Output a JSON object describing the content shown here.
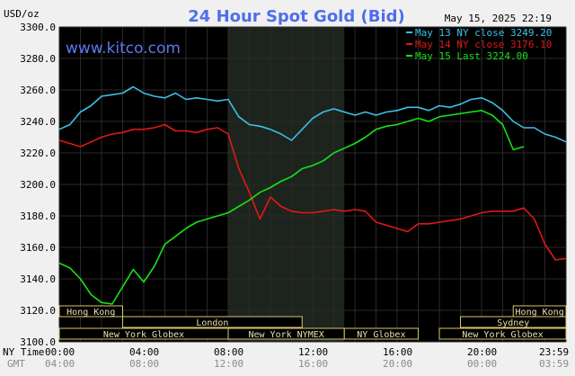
{
  "chart_data": {
    "type": "line",
    "title": "24 Hour Spot Gold (Bid)",
    "unit_label": "USD/oz",
    "website": "www.kitco.com",
    "date_stamp": "May 15, 2025 22:19",
    "ylim": [
      3100,
      3300
    ],
    "y_ticks": [
      "3300.0",
      "3280.0",
      "3260.0",
      "3240.0",
      "3220.0",
      "3200.0",
      "3180.0",
      "3160.0",
      "3140.0",
      "3120.0",
      "3100.0"
    ],
    "y_tick_values": [
      3300,
      3280,
      3260,
      3240,
      3220,
      3200,
      3180,
      3160,
      3140,
      3120,
      3100
    ],
    "xlim": [
      0,
      24
    ],
    "x_tick_values": [
      0,
      4,
      8,
      12,
      16,
      20,
      24
    ],
    "x_tick_labels_ny": [
      "00:00",
      "04:00",
      "08:00",
      "12:00",
      "16:00",
      "20:00",
      "23:59"
    ],
    "x_tick_labels_gmt": [
      "04:00",
      "08:00",
      "12:00",
      "16:00",
      "20:00",
      "00:00",
      "03:59"
    ],
    "row_label_ny": "NY Time",
    "row_label_gmt": "GMT",
    "shaded_session": [
      8,
      13.5
    ],
    "colors": {
      "bg": "#000000",
      "grid": "#2a2a2a",
      "session": "#1d241d",
      "text": "#ffffff",
      "title": "#4f6fe8",
      "axis_text": "#000000"
    },
    "legend": [
      {
        "label": "May 13 NY close 3249.20",
        "color": "#3cc0e6"
      },
      {
        "label": "May 14 NY close 3176.10",
        "color": "#e01818"
      },
      {
        "label": "May 15 Last 3224.00",
        "color": "#19e019"
      }
    ],
    "series": [
      {
        "name": "May 13",
        "color": "#3cc0e6",
        "x": [
          0,
          0.5,
          1,
          1.5,
          2,
          2.5,
          3,
          3.5,
          4,
          4.5,
          5,
          5.5,
          6,
          6.5,
          7,
          7.5,
          8,
          8.5,
          9,
          9.5,
          10,
          10.5,
          11,
          11.5,
          12,
          12.5,
          13,
          13.5,
          14,
          14.5,
          15,
          15.5,
          16,
          16.5,
          17,
          17.5,
          18,
          18.5,
          19,
          19.5,
          20,
          20.5,
          21,
          21.5,
          22,
          22.5,
          23,
          23.5,
          24
        ],
        "y": [
          3235,
          3238,
          3246,
          3250,
          3256,
          3257,
          3258,
          3262,
          3258,
          3256,
          3255,
          3258,
          3254,
          3255,
          3254,
          3253,
          3254,
          3243,
          3238,
          3237,
          3235,
          3232,
          3228,
          3235,
          3242,
          3246,
          3248,
          3246,
          3244,
          3246,
          3244,
          3246,
          3247,
          3249,
          3249,
          3247,
          3250,
          3249,
          3251,
          3254,
          3255,
          3252,
          3247,
          3240,
          3236,
          3236,
          3232,
          3230,
          3227
        ]
      },
      {
        "name": "May 14",
        "color": "#e01818",
        "x": [
          0,
          0.5,
          1,
          1.5,
          2,
          2.5,
          3,
          3.5,
          4,
          4.5,
          5,
          5.5,
          6,
          6.5,
          7,
          7.5,
          8,
          8.5,
          9,
          9.5,
          10,
          10.5,
          11,
          11.5,
          12,
          12.5,
          13,
          13.5,
          14,
          14.5,
          15,
          15.5,
          16,
          16.5,
          17,
          17.5,
          18,
          18.5,
          19,
          19.5,
          20,
          20.5,
          21,
          21.5,
          22,
          22.5,
          23,
          23.5,
          24
        ],
        "y": [
          3228,
          3226,
          3224,
          3227,
          3230,
          3232,
          3233,
          3235,
          3235,
          3236,
          3238,
          3234,
          3234,
          3233,
          3235,
          3236,
          3232,
          3210,
          3195,
          3178,
          3192,
          3186,
          3183,
          3182,
          3182,
          3183,
          3184,
          3183,
          3184,
          3183,
          3176,
          3174,
          3172,
          3170,
          3175,
          3175,
          3176,
          3177,
          3178,
          3180,
          3182,
          3183,
          3183,
          3183,
          3185,
          3178,
          3162,
          3152,
          3153
        ]
      },
      {
        "name": "May 15",
        "color": "#19e019",
        "x": [
          0,
          0.5,
          1,
          1.5,
          2,
          2.5,
          3,
          3.5,
          4,
          4.5,
          5,
          5.5,
          6,
          6.5,
          7,
          7.5,
          8,
          8.5,
          9,
          9.5,
          10,
          10.5,
          11,
          11.5,
          12,
          12.5,
          13,
          13.5,
          14,
          14.5,
          15,
          15.5,
          16,
          16.5,
          17,
          17.5,
          18,
          18.5,
          19,
          19.5,
          20,
          20.5,
          21,
          21.5,
          22
        ],
        "y": [
          3150,
          3147,
          3140,
          3130,
          3125,
          3124,
          3135,
          3146,
          3138,
          3148,
          3162,
          3167,
          3172,
          3176,
          3178,
          3180,
          3182,
          3186,
          3190,
          3195,
          3198,
          3202,
          3205,
          3210,
          3212,
          3215,
          3220,
          3223,
          3226,
          3230,
          3235,
          3237,
          3238,
          3240,
          3242,
          3240,
          3243,
          3244,
          3245,
          3246,
          3247,
          3244,
          3238,
          3222,
          3224
        ]
      }
    ],
    "sessions": [
      {
        "label": "Hong Kong",
        "row": 0,
        "start": 0,
        "end": 3,
        "start_label": "",
        "end_label": ""
      },
      {
        "label": "London",
        "row": 1,
        "start": 3,
        "end": 11.5
      },
      {
        "label": "New York Globex",
        "row": 2,
        "start": 0,
        "end": 8
      },
      {
        "label": "New York NYMEX",
        "row": 2,
        "start": 8,
        "end": 13.5
      },
      {
        "label": "NY Globex",
        "row": 2,
        "start": 13.5,
        "end": 17
      },
      {
        "label": "Hong Kong",
        "row": 0,
        "start": 21.5,
        "end": 24
      },
      {
        "label": "Sydney",
        "row": 1,
        "start": 19,
        "end": 24
      },
      {
        "label": "New York Globex",
        "row": 2,
        "start": 18,
        "end": 24
      }
    ]
  }
}
